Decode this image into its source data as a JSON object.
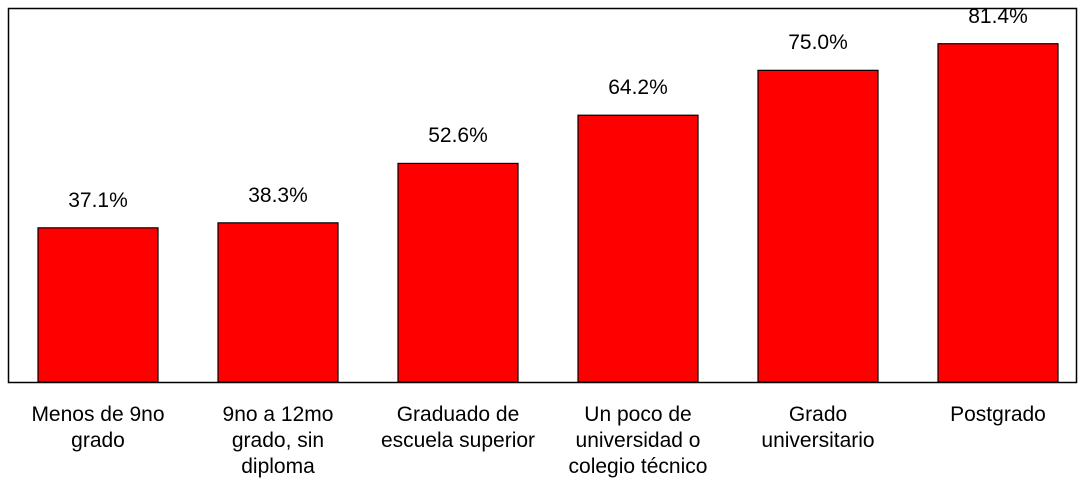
{
  "chart_data": {
    "type": "bar",
    "categories": [
      "Menos de 9no grado",
      "9no a 12mo grado, sin diploma",
      "Graduado de escuela superior",
      "Un poco de universidad o colegio técnico",
      "Grado universitario",
      "Postgrado"
    ],
    "values": [
      37.1,
      38.3,
      52.6,
      64.2,
      75.0,
      81.4
    ],
    "value_labels": [
      "37.1%",
      "38.3%",
      "52.6%",
      "64.2%",
      "75.0%",
      "81.4%"
    ],
    "color": "#ff0000",
    "ylim": [
      0,
      90
    ]
  }
}
